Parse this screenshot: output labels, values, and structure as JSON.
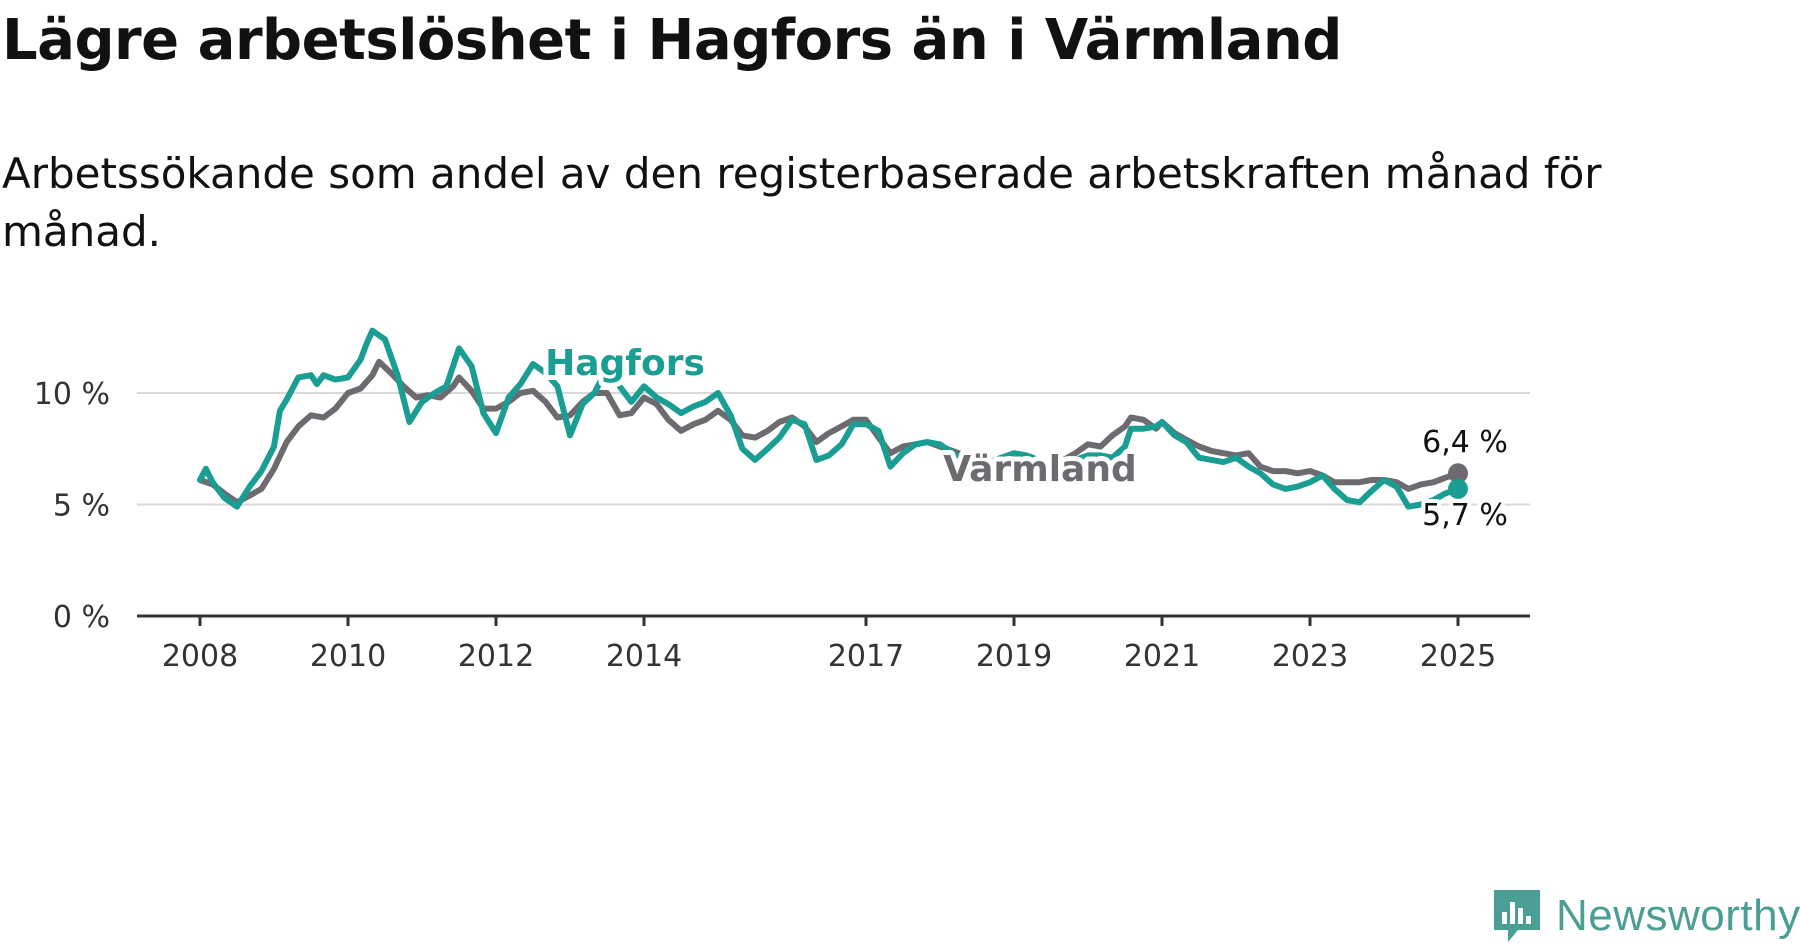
{
  "title": "Lägre arbetslöshet i Hagfors än i Värmland",
  "subtitle": "Arbetssökande som andel av den registerbaserade arbetskraften månad för månad.",
  "logo": {
    "text": "Newsworthy",
    "icon": "newsworthy-logo-icon",
    "color": "#4a9e93"
  },
  "chart_data": {
    "type": "line",
    "title": "Lägre arbetslöshet i Hagfors än i Värmland",
    "subtitle": "Arbetssökande som andel av den registerbaserade arbetskraften månad för månad.",
    "xlabel": "",
    "ylabel": "",
    "xlim": [
      2007.5,
      2025.95
    ],
    "ylim": [
      0,
      13.5
    ],
    "x_ticks": [
      {
        "value": 2008,
        "label": "2008"
      },
      {
        "value": 2010,
        "label": "2010"
      },
      {
        "value": 2012,
        "label": "2012"
      },
      {
        "value": 2014,
        "label": "2014"
      },
      {
        "value": 2017,
        "label": "2017"
      },
      {
        "value": 2019,
        "label": "2019"
      },
      {
        "value": 2021,
        "label": "2021"
      },
      {
        "value": 2023,
        "label": "2023"
      },
      {
        "value": 2025,
        "label": "2025"
      }
    ],
    "y_ticks": [
      {
        "value": 0,
        "label": "0 %"
      },
      {
        "value": 5,
        "label": "5 %"
      },
      {
        "value": 10,
        "label": "10 %"
      }
    ],
    "grid": true,
    "legend": "inline labels",
    "series": [
      {
        "name": "Värmland",
        "color": "#6e6b70",
        "end_label": "6,4 %",
        "points": [
          [
            2008.0,
            6.1
          ],
          [
            2008.17,
            5.9
          ],
          [
            2008.33,
            5.5
          ],
          [
            2008.5,
            5.1
          ],
          [
            2008.67,
            5.4
          ],
          [
            2008.83,
            5.7
          ],
          [
            2009.0,
            6.6
          ],
          [
            2009.17,
            7.8
          ],
          [
            2009.33,
            8.5
          ],
          [
            2009.5,
            9.0
          ],
          [
            2009.67,
            8.9
          ],
          [
            2009.83,
            9.3
          ],
          [
            2010.0,
            10.0
          ],
          [
            2010.17,
            10.2
          ],
          [
            2010.33,
            10.8
          ],
          [
            2010.42,
            11.4
          ],
          [
            2010.58,
            10.9
          ],
          [
            2010.75,
            10.3
          ],
          [
            2010.92,
            9.8
          ],
          [
            2011.08,
            9.9
          ],
          [
            2011.25,
            9.8
          ],
          [
            2011.42,
            10.3
          ],
          [
            2011.5,
            10.7
          ],
          [
            2011.67,
            10.1
          ],
          [
            2011.83,
            9.3
          ],
          [
            2012.0,
            9.3
          ],
          [
            2012.17,
            9.6
          ],
          [
            2012.33,
            10.0
          ],
          [
            2012.5,
            10.1
          ],
          [
            2012.67,
            9.6
          ],
          [
            2012.83,
            8.9
          ],
          [
            2013.0,
            9.0
          ],
          [
            2013.17,
            9.6
          ],
          [
            2013.33,
            10.0
          ],
          [
            2013.5,
            10.0
          ],
          [
            2013.67,
            9.0
          ],
          [
            2013.83,
            9.1
          ],
          [
            2014.0,
            9.8
          ],
          [
            2014.17,
            9.5
          ],
          [
            2014.33,
            8.8
          ],
          [
            2014.5,
            8.3
          ],
          [
            2014.67,
            8.6
          ],
          [
            2014.83,
            8.8
          ],
          [
            2015.0,
            9.2
          ],
          [
            2015.17,
            8.8
          ],
          [
            2015.33,
            8.1
          ],
          [
            2015.5,
            8.0
          ],
          [
            2015.67,
            8.3
          ],
          [
            2015.83,
            8.7
          ],
          [
            2016.0,
            8.9
          ],
          [
            2016.17,
            8.5
          ],
          [
            2016.33,
            7.8
          ],
          [
            2016.5,
            8.2
          ],
          [
            2016.67,
            8.5
          ],
          [
            2016.83,
            8.8
          ],
          [
            2017.0,
            8.8
          ],
          [
            2017.17,
            8.0
          ],
          [
            2017.33,
            7.3
          ],
          [
            2017.5,
            7.6
          ],
          [
            2017.67,
            7.7
          ],
          [
            2017.83,
            7.8
          ],
          [
            2018.0,
            7.6
          ],
          [
            2018.17,
            7.4
          ],
          [
            2018.33,
            7.2
          ],
          [
            2018.5,
            7.0
          ],
          [
            2018.67,
            6.9
          ],
          [
            2018.83,
            6.9
          ],
          [
            2019.0,
            7.0
          ],
          [
            2019.17,
            6.9
          ],
          [
            2019.33,
            6.8
          ],
          [
            2019.5,
            6.9
          ],
          [
            2019.67,
            7.0
          ],
          [
            2019.83,
            7.3
          ],
          [
            2020.0,
            7.7
          ],
          [
            2020.17,
            7.6
          ],
          [
            2020.33,
            8.1
          ],
          [
            2020.5,
            8.5
          ],
          [
            2020.58,
            8.9
          ],
          [
            2020.75,
            8.8
          ],
          [
            2020.92,
            8.4
          ],
          [
            2021.0,
            8.7
          ],
          [
            2021.17,
            8.2
          ],
          [
            2021.33,
            7.9
          ],
          [
            2021.5,
            7.6
          ],
          [
            2021.67,
            7.4
          ],
          [
            2021.83,
            7.3
          ],
          [
            2022.0,
            7.2
          ],
          [
            2022.17,
            7.3
          ],
          [
            2022.33,
            6.7
          ],
          [
            2022.5,
            6.5
          ],
          [
            2022.67,
            6.5
          ],
          [
            2022.83,
            6.4
          ],
          [
            2023.0,
            6.5
          ],
          [
            2023.17,
            6.3
          ],
          [
            2023.33,
            6.0
          ],
          [
            2023.5,
            6.0
          ],
          [
            2023.67,
            6.0
          ],
          [
            2023.83,
            6.1
          ],
          [
            2024.0,
            6.1
          ],
          [
            2024.17,
            6.0
          ],
          [
            2024.33,
            5.7
          ],
          [
            2024.5,
            5.9
          ],
          [
            2024.67,
            6.0
          ],
          [
            2024.83,
            6.2
          ],
          [
            2025.0,
            6.4
          ]
        ]
      },
      {
        "name": "Hagfors",
        "color": "#1a9e94",
        "end_label": "5,7 %",
        "points": [
          [
            2008.0,
            6.1
          ],
          [
            2008.08,
            6.6
          ],
          [
            2008.17,
            6.0
          ],
          [
            2008.33,
            5.3
          ],
          [
            2008.5,
            4.9
          ],
          [
            2008.67,
            5.8
          ],
          [
            2008.83,
            6.5
          ],
          [
            2009.0,
            7.6
          ],
          [
            2009.08,
            9.2
          ],
          [
            2009.17,
            9.7
          ],
          [
            2009.33,
            10.7
          ],
          [
            2009.5,
            10.8
          ],
          [
            2009.58,
            10.4
          ],
          [
            2009.67,
            10.8
          ],
          [
            2009.83,
            10.6
          ],
          [
            2010.0,
            10.7
          ],
          [
            2010.17,
            11.5
          ],
          [
            2010.25,
            12.2
          ],
          [
            2010.33,
            12.8
          ],
          [
            2010.5,
            12.4
          ],
          [
            2010.67,
            10.8
          ],
          [
            2010.83,
            8.7
          ],
          [
            2011.0,
            9.6
          ],
          [
            2011.17,
            10.0
          ],
          [
            2011.33,
            10.3
          ],
          [
            2011.5,
            12.0
          ],
          [
            2011.67,
            11.2
          ],
          [
            2011.83,
            9.1
          ],
          [
            2012.0,
            8.2
          ],
          [
            2012.17,
            9.8
          ],
          [
            2012.33,
            10.4
          ],
          [
            2012.5,
            11.3
          ],
          [
            2012.67,
            10.9
          ],
          [
            2012.83,
            10.3
          ],
          [
            2013.0,
            8.1
          ],
          [
            2013.17,
            9.5
          ],
          [
            2013.33,
            10.0
          ],
          [
            2013.5,
            11.1
          ],
          [
            2013.67,
            10.3
          ],
          [
            2013.83,
            9.6
          ],
          [
            2014.0,
            10.3
          ],
          [
            2014.17,
            9.8
          ],
          [
            2014.33,
            9.5
          ],
          [
            2014.5,
            9.1
          ],
          [
            2014.67,
            9.4
          ],
          [
            2014.83,
            9.6
          ],
          [
            2015.0,
            10.0
          ],
          [
            2015.17,
            9.0
          ],
          [
            2015.33,
            7.5
          ],
          [
            2015.5,
            7.0
          ],
          [
            2015.67,
            7.5
          ],
          [
            2015.83,
            8.0
          ],
          [
            2016.0,
            8.8
          ],
          [
            2016.17,
            8.6
          ],
          [
            2016.33,
            7.0
          ],
          [
            2016.5,
            7.2
          ],
          [
            2016.67,
            7.7
          ],
          [
            2016.83,
            8.6
          ],
          [
            2017.0,
            8.6
          ],
          [
            2017.17,
            8.3
          ],
          [
            2017.33,
            6.7
          ],
          [
            2017.5,
            7.3
          ],
          [
            2017.67,
            7.7
          ],
          [
            2017.83,
            7.8
          ],
          [
            2018.0,
            7.7
          ],
          [
            2018.17,
            7.3
          ],
          [
            2018.33,
            7.0
          ],
          [
            2018.5,
            6.9
          ],
          [
            2018.67,
            6.9
          ],
          [
            2018.83,
            7.1
          ],
          [
            2019.0,
            7.3
          ],
          [
            2019.17,
            7.2
          ],
          [
            2019.33,
            7.0
          ],
          [
            2019.5,
            6.9
          ],
          [
            2019.67,
            6.8
          ],
          [
            2019.83,
            7.0
          ],
          [
            2020.0,
            7.2
          ],
          [
            2020.17,
            7.2
          ],
          [
            2020.33,
            7.1
          ],
          [
            2020.5,
            7.6
          ],
          [
            2020.58,
            8.4
          ],
          [
            2020.75,
            8.4
          ],
          [
            2020.92,
            8.5
          ],
          [
            2021.0,
            8.7
          ],
          [
            2021.17,
            8.1
          ],
          [
            2021.33,
            7.8
          ],
          [
            2021.5,
            7.1
          ],
          [
            2021.67,
            7.0
          ],
          [
            2021.83,
            6.9
          ],
          [
            2022.0,
            7.1
          ],
          [
            2022.17,
            6.7
          ],
          [
            2022.33,
            6.4
          ],
          [
            2022.5,
            5.9
          ],
          [
            2022.67,
            5.7
          ],
          [
            2022.83,
            5.8
          ],
          [
            2023.0,
            6.0
          ],
          [
            2023.17,
            6.3
          ],
          [
            2023.33,
            5.7
          ],
          [
            2023.5,
            5.2
          ],
          [
            2023.67,
            5.1
          ],
          [
            2023.83,
            5.6
          ],
          [
            2024.0,
            6.1
          ],
          [
            2024.17,
            5.8
          ],
          [
            2024.33,
            4.9
          ],
          [
            2024.5,
            5.0
          ],
          [
            2024.67,
            5.2
          ],
          [
            2024.83,
            5.5
          ],
          [
            2025.0,
            5.7
          ]
        ]
      }
    ]
  }
}
